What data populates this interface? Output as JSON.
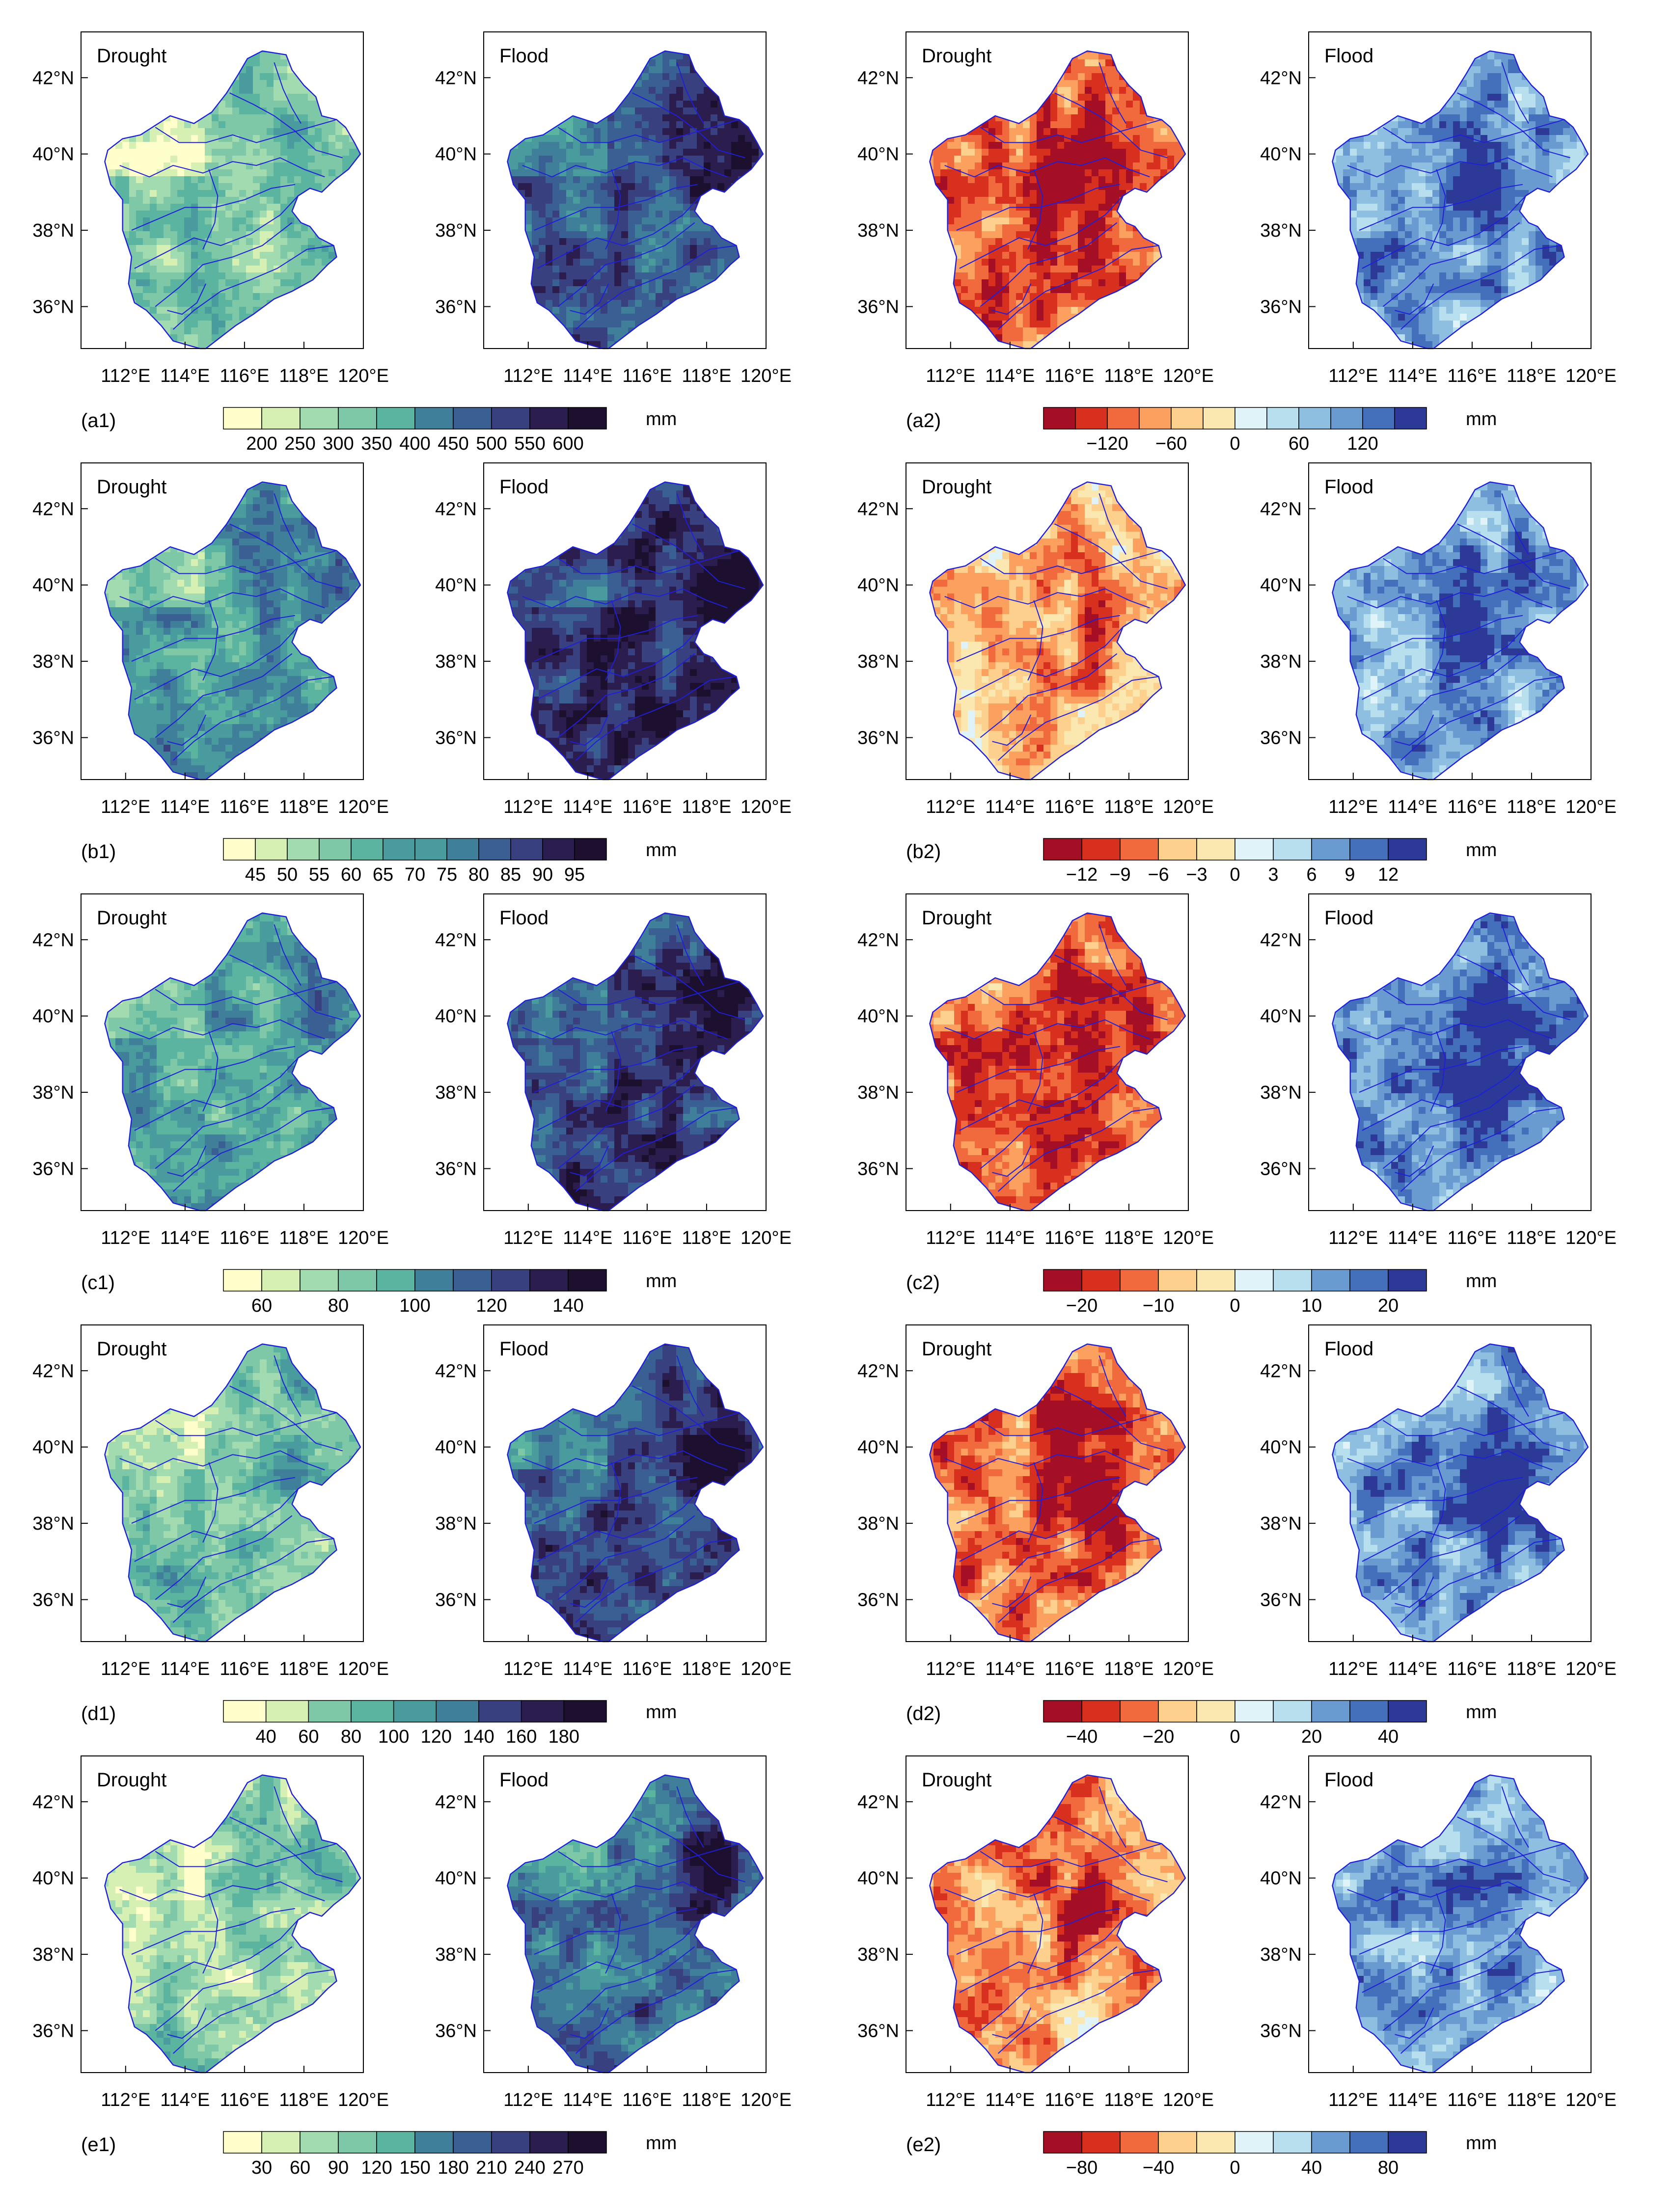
{
  "figure": {
    "panel_titles": [
      "Drought",
      "Flood"
    ],
    "lon_ticks": [
      "112°E",
      "114°E",
      "116°E",
      "118°E",
      "120°E"
    ],
    "lat_ticks": [
      "42°N",
      "40°N",
      "38°N",
      "36°N"
    ],
    "unit": "mm",
    "rows": [
      {
        "left": {
          "label": "(a1)",
          "ticks": [
            "200",
            "250",
            "300",
            "350",
            "400",
            "450",
            "500",
            "550",
            "600"
          ],
          "nbins": 10,
          "scheme": "seq",
          "drought_level": 0.3,
          "flood_level": 0.7,
          "flood_hotspot": 1.0
        },
        "right": {
          "label": "(a2)",
          "ticks": [
            "−120",
            "−60",
            "0",
            "60",
            "120"
          ],
          "nbins": 12,
          "scheme": "div",
          "drought_level": 0.22,
          "flood_level": 0.76
        }
      },
      {
        "left": {
          "label": "(b1)",
          "ticks": [
            "45",
            "50",
            "55",
            "60",
            "65",
            "70",
            "75",
            "80",
            "85",
            "90",
            "95"
          ],
          "nbins": 12,
          "scheme": "seq",
          "drought_level": 0.5,
          "flood_level": 0.82,
          "flood_hotspot": 0.95
        },
        "right": {
          "label": "(b2)",
          "ticks": [
            "−12",
            "−9",
            "−6",
            "−3",
            "0",
            "3",
            "6",
            "9",
            "12"
          ],
          "nbins": 10,
          "scheme": "div",
          "drought_level": 0.38,
          "flood_level": 0.74
        }
      },
      {
        "left": {
          "label": "(c1)",
          "ticks": [
            "60",
            "80",
            "100",
            "120",
            "140"
          ],
          "nbins": 10,
          "scheme": "seq",
          "drought_level": 0.45,
          "flood_level": 0.75,
          "flood_hotspot": 0.95
        },
        "right": {
          "label": "(c2)",
          "ticks": [
            "−20",
            "−10",
            "0",
            "10",
            "20"
          ],
          "nbins": 10,
          "scheme": "div",
          "drought_level": 0.2,
          "flood_level": 0.8
        }
      },
      {
        "left": {
          "label": "(d1)",
          "ticks": [
            "40",
            "60",
            "80",
            "100",
            "120",
            "140",
            "160",
            "180"
          ],
          "nbins": 9,
          "scheme": "seq",
          "drought_level": 0.35,
          "flood_level": 0.72,
          "flood_hotspot": 1.0
        },
        "right": {
          "label": "(d2)",
          "ticks": [
            "−40",
            "−20",
            "0",
            "20",
            "40"
          ],
          "nbins": 10,
          "scheme": "div",
          "drought_level": 0.22,
          "flood_level": 0.78
        }
      },
      {
        "left": {
          "label": "(e1)",
          "ticks": [
            "30",
            "60",
            "90",
            "120",
            "150",
            "180",
            "210",
            "240",
            "270"
          ],
          "nbins": 10,
          "scheme": "seq",
          "drought_level": 0.25,
          "flood_level": 0.62,
          "flood_hotspot": 1.0
        },
        "right": {
          "label": "(e2)",
          "ticks": [
            "−80",
            "−40",
            "0",
            "40",
            "80"
          ],
          "nbins": 10,
          "scheme": "div",
          "drought_level": 0.3,
          "flood_level": 0.74
        }
      }
    ]
  },
  "colors": {
    "sequential": [
      "#ffffcc",
      "#d6efb3",
      "#a3dbb0",
      "#7ec8a7",
      "#5ab4a0",
      "#4a9b9e",
      "#3f7f99",
      "#3a5f92",
      "#39407f",
      "#2b1d4e",
      "#1d0f2e"
    ],
    "diverging": [
      "#a50f26",
      "#d7301f",
      "#f06a3d",
      "#fba05e",
      "#fdd08e",
      "#fbe8b0",
      "#e0f3f8",
      "#b7dfee",
      "#8ebfe0",
      "#6a9bd0",
      "#4470bb",
      "#2c3996"
    ],
    "basin_outline": "#1f1fd8"
  }
}
